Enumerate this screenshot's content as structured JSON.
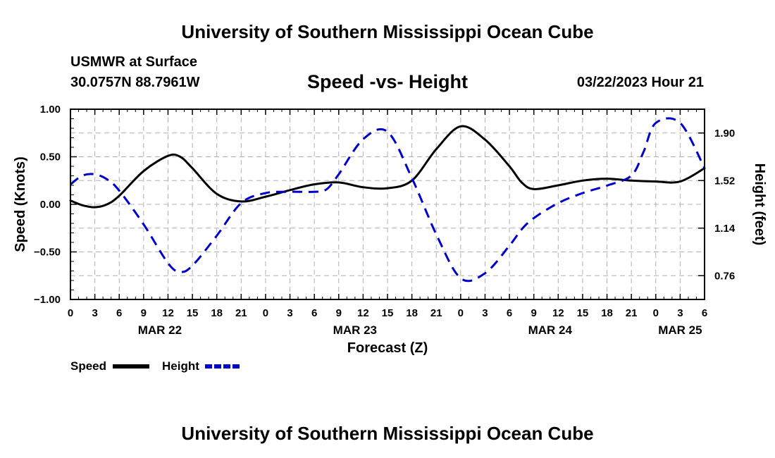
{
  "header": {
    "title": "University of Southern Mississippi Ocean Cube",
    "station": "USMWR at Surface",
    "coords": "30.0757N  88.7961W",
    "subtitle": "Speed -vs- Height",
    "datetime": "03/22/2023 Hour 21"
  },
  "footer": {
    "title": "University of Southern Mississippi Ocean Cube"
  },
  "chart_data": {
    "type": "line",
    "title": "Speed -vs- Height",
    "xlabel": "Forecast (Z)",
    "ylabel": "Speed (Knots)",
    "y2label": "Height (feet)",
    "x_range_hours": [
      0,
      78
    ],
    "ylim": [
      -1.0,
      1.0
    ],
    "y2lim": [
      0.57,
      2.09
    ],
    "grid": true,
    "yticks": [
      -1.0,
      -0.5,
      0.0,
      0.5,
      1.0
    ],
    "ytick_labels": [
      "−1.00",
      "−0.50",
      "0.00",
      "0.50",
      "1.00"
    ],
    "y2ticks": [
      0.76,
      1.14,
      1.52,
      1.9
    ],
    "y2tick_labels": [
      "0.76",
      "1.14",
      "1.52",
      "1.90"
    ],
    "xticks": [
      0,
      3,
      6,
      9,
      12,
      15,
      18,
      21,
      24,
      27,
      30,
      33,
      36,
      39,
      42,
      45,
      48,
      51,
      54,
      57,
      60,
      63,
      66,
      69,
      72,
      75,
      78
    ],
    "xtick_labels": [
      "0",
      "3",
      "6",
      "9",
      "12",
      "15",
      "18",
      "21",
      "0",
      "3",
      "6",
      "9",
      "12",
      "15",
      "18",
      "21",
      "0",
      "3",
      "6",
      "9",
      "12",
      "15",
      "18",
      "21",
      "0",
      "3",
      "6"
    ],
    "date_labels": [
      {
        "hour": 11,
        "label": "MAR 22"
      },
      {
        "hour": 35,
        "label": "MAR 23"
      },
      {
        "hour": 59,
        "label": "MAR 24"
      },
      {
        "hour": 75,
        "label": "MAR 25"
      }
    ],
    "legend": [
      {
        "name": "Speed",
        "color": "#000000",
        "dash": "solid"
      },
      {
        "name": "Height",
        "color": "#0000cc",
        "dash": "dashed"
      }
    ],
    "legend_position": "bottom-left",
    "series": [
      {
        "name": "Speed",
        "axis": "left",
        "color": "#000000",
        "dash": "solid",
        "x": [
          0,
          1.5,
          3,
          4.5,
          6,
          9,
          12,
          13.5,
          15,
          18,
          21,
          24,
          27,
          30,
          33,
          36,
          39,
          42,
          45,
          48,
          51,
          54,
          55.5,
          57,
          60,
          63,
          66,
          69,
          72,
          75,
          78
        ],
        "y": [
          0.04,
          -0.01,
          -0.03,
          0.0,
          0.09,
          0.35,
          0.51,
          0.5,
          0.38,
          0.11,
          0.03,
          0.08,
          0.15,
          0.21,
          0.23,
          0.18,
          0.17,
          0.25,
          0.58,
          0.82,
          0.68,
          0.4,
          0.23,
          0.16,
          0.2,
          0.25,
          0.27,
          0.25,
          0.24,
          0.24,
          0.38
        ]
      },
      {
        "name": "Height",
        "axis": "right",
        "color": "#0000cc",
        "dash": "dashed",
        "x": [
          0,
          1.5,
          3,
          4.5,
          6,
          9,
          12,
          13.5,
          15,
          18,
          21,
          24,
          27,
          30,
          31.5,
          33,
          36,
          39,
          42,
          45,
          48,
          51,
          54,
          55.5,
          57,
          60,
          63,
          66,
          69,
          70.5,
          72,
          75,
          78
        ],
        "y": [
          1.49,
          1.56,
          1.57,
          1.53,
          1.44,
          1.17,
          0.86,
          0.79,
          0.84,
          1.08,
          1.34,
          1.42,
          1.43,
          1.43,
          1.45,
          1.57,
          1.85,
          1.91,
          1.54,
          1.09,
          0.74,
          0.78,
          1.0,
          1.13,
          1.22,
          1.34,
          1.42,
          1.48,
          1.56,
          1.75,
          1.98,
          1.98,
          1.62
        ]
      }
    ]
  }
}
